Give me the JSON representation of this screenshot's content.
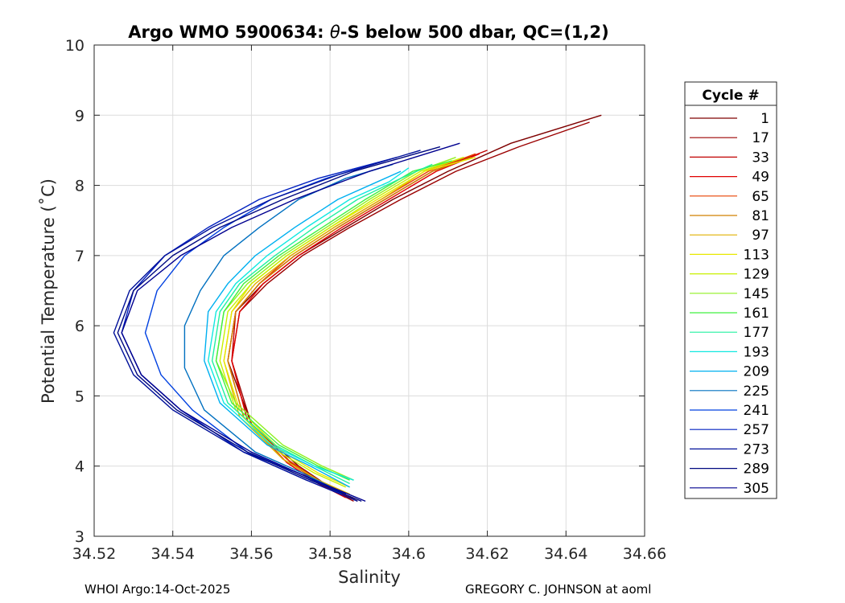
{
  "chart_data": {
    "type": "line",
    "title": "Argo WMO 5900634: θ-S below 500 dbar,  QC=(1,2)",
    "title_parts": {
      "prefix": "Argo WMO 5900634: ",
      "theta": "θ",
      "suffix": "-S below 500 dbar,  QC=(1,2)"
    },
    "xlabel": "Salinity",
    "ylabel": "Potential Temperature (˚C)",
    "xlim": [
      34.52,
      34.66
    ],
    "ylim": [
      3,
      10
    ],
    "x_ticks": [
      34.52,
      34.54,
      34.56,
      34.58,
      34.6,
      34.62,
      34.64,
      34.66
    ],
    "x_tick_labels": [
      "34.52",
      "34.54",
      "34.56",
      "34.58",
      "34.6",
      "34.62",
      "34.64",
      "34.66"
    ],
    "y_ticks": [
      3,
      4,
      5,
      6,
      7,
      8,
      9,
      10
    ],
    "y_tick_labels": [
      "3",
      "4",
      "5",
      "6",
      "7",
      "8",
      "9",
      "10"
    ],
    "grid": true,
    "legend_position": "outside-right",
    "legend_title": "Cycle #",
    "colormap": "jet",
    "legend": [
      {
        "label": "1",
        "color": "#7f0000"
      },
      {
        "label": "17",
        "color": "#9b0000"
      },
      {
        "label": "33",
        "color": "#c00000"
      },
      {
        "label": "49",
        "color": "#e00000"
      },
      {
        "label": "65",
        "color": "#e84000"
      },
      {
        "label": "81",
        "color": "#d08000"
      },
      {
        "label": "97",
        "color": "#e0b000"
      },
      {
        "label": "113",
        "color": "#e8e800"
      },
      {
        "label": "129",
        "color": "#c8f000"
      },
      {
        "label": "145",
        "color": "#90f020"
      },
      {
        "label": "161",
        "color": "#40f040"
      },
      {
        "label": "177",
        "color": "#20f0a0"
      },
      {
        "label": "193",
        "color": "#10e8e0"
      },
      {
        "label": "209",
        "color": "#00b0f0"
      },
      {
        "label": "225",
        "color": "#0070c0"
      },
      {
        "label": "241",
        "color": "#0040e0"
      },
      {
        "label": "257",
        "color": "#0020c0"
      },
      {
        "label": "273",
        "color": "#00109a"
      },
      {
        "label": "289",
        "color": "#000880"
      },
      {
        "label": "305",
        "color": "#00008f"
      }
    ],
    "series": [
      {
        "name": "1",
        "color": "#7f0000",
        "x": [
          34.587,
          34.58,
          34.572,
          34.56,
          34.554,
          34.556,
          34.563,
          34.572,
          34.584,
          34.596,
          34.61,
          34.626,
          34.649
        ],
        "y": [
          3.5,
          3.7,
          4.0,
          4.6,
          5.5,
          6.2,
          6.6,
          7.0,
          7.4,
          7.8,
          8.2,
          8.6,
          9.0
        ]
      },
      {
        "name": "17",
        "color": "#9b0000",
        "x": [
          34.586,
          34.579,
          34.571,
          34.56,
          34.555,
          34.557,
          34.564,
          34.573,
          34.585,
          34.598,
          34.612,
          34.628,
          34.646
        ],
        "y": [
          3.5,
          3.7,
          4.0,
          4.6,
          5.5,
          6.2,
          6.6,
          7.0,
          7.4,
          7.8,
          8.2,
          8.55,
          8.9
        ]
      },
      {
        "name": "33",
        "color": "#c00000",
        "x": [
          34.585,
          34.578,
          34.57,
          34.559,
          34.555,
          34.556,
          34.562,
          34.571,
          34.582,
          34.594,
          34.606,
          34.62
        ],
        "y": [
          3.55,
          3.75,
          4.05,
          4.65,
          5.5,
          6.2,
          6.6,
          7.0,
          7.4,
          7.8,
          8.2,
          8.5
        ]
      },
      {
        "name": "49",
        "color": "#e00000",
        "x": [
          34.584,
          34.577,
          34.569,
          34.559,
          34.555,
          34.557,
          34.563,
          34.572,
          34.583,
          34.595,
          34.607,
          34.618
        ],
        "y": [
          3.55,
          3.75,
          4.05,
          4.65,
          5.5,
          6.2,
          6.6,
          7.0,
          7.4,
          7.8,
          8.2,
          8.45
        ]
      },
      {
        "name": "65",
        "color": "#e84000",
        "x": [
          34.584,
          34.577,
          34.569,
          34.558,
          34.554,
          34.556,
          34.562,
          34.57,
          34.581,
          34.593,
          34.605,
          34.617
        ],
        "y": [
          3.6,
          3.8,
          4.1,
          4.7,
          5.5,
          6.2,
          6.6,
          7.0,
          7.4,
          7.8,
          8.2,
          8.45
        ]
      },
      {
        "name": "81",
        "color": "#d08000",
        "x": [
          34.584,
          34.577,
          34.568,
          34.558,
          34.554,
          34.556,
          34.562,
          34.571,
          34.582,
          34.594,
          34.606,
          34.616
        ],
        "y": [
          3.6,
          3.8,
          4.1,
          4.7,
          5.5,
          6.2,
          6.6,
          7.0,
          7.4,
          7.8,
          8.2,
          8.4
        ]
      },
      {
        "name": "97",
        "color": "#e0b000",
        "x": [
          34.585,
          34.577,
          34.568,
          34.557,
          34.553,
          34.555,
          34.561,
          34.57,
          34.581,
          34.593,
          34.604,
          34.614
        ],
        "y": [
          3.6,
          3.8,
          4.1,
          4.7,
          5.5,
          6.2,
          6.6,
          7.0,
          7.4,
          7.8,
          8.2,
          8.4
        ]
      },
      {
        "name": "113",
        "color": "#e8e800",
        "x": [
          34.585,
          34.577,
          34.568,
          34.557,
          34.553,
          34.555,
          34.56,
          34.569,
          34.58,
          34.592,
          34.604,
          34.617
        ],
        "y": [
          3.7,
          3.9,
          4.2,
          4.8,
          5.5,
          6.2,
          6.6,
          7.0,
          7.4,
          7.8,
          8.2,
          8.4
        ]
      },
      {
        "name": "129",
        "color": "#c8f000",
        "x": [
          34.584,
          34.576,
          34.567,
          34.556,
          34.552,
          34.554,
          34.56,
          34.569,
          34.58,
          34.591,
          34.603,
          34.614
        ],
        "y": [
          3.7,
          3.9,
          4.2,
          4.8,
          5.5,
          6.2,
          6.6,
          7.0,
          7.4,
          7.8,
          8.2,
          8.4
        ]
      },
      {
        "name": "145",
        "color": "#90f020",
        "x": [
          34.586,
          34.578,
          34.568,
          34.556,
          34.551,
          34.553,
          34.559,
          34.568,
          34.579,
          34.59,
          34.602,
          34.612
        ],
        "y": [
          3.8,
          4.0,
          4.3,
          4.9,
          5.5,
          6.2,
          6.6,
          7.0,
          7.4,
          7.8,
          8.2,
          8.4
        ]
      },
      {
        "name": "161",
        "color": "#40f040",
        "x": [
          34.585,
          34.577,
          34.567,
          34.555,
          34.551,
          34.553,
          34.558,
          34.567,
          34.578,
          34.589,
          34.601,
          34.611
        ],
        "y": [
          3.8,
          4.0,
          4.3,
          4.9,
          5.5,
          6.2,
          6.6,
          7.0,
          7.4,
          7.8,
          8.2,
          8.35
        ]
      },
      {
        "name": "177",
        "color": "#20f0a0",
        "x": [
          34.585,
          34.576,
          34.566,
          34.554,
          34.55,
          34.552,
          34.557,
          34.566,
          34.576,
          34.587,
          34.598,
          34.606
        ],
        "y": [
          3.75,
          4.0,
          4.3,
          4.9,
          5.5,
          6.2,
          6.6,
          7.0,
          7.4,
          7.8,
          8.1,
          8.3
        ]
      },
      {
        "name": "193",
        "color": "#10e8e0",
        "x": [
          34.586,
          34.576,
          34.565,
          34.553,
          34.549,
          34.551,
          34.556,
          34.564,
          34.574,
          34.585,
          34.595,
          34.6
        ],
        "y": [
          3.8,
          4.0,
          4.3,
          4.9,
          5.5,
          6.2,
          6.6,
          7.0,
          7.4,
          7.8,
          8.05,
          8.25
        ]
      },
      {
        "name": "209",
        "color": "#00b0f0",
        "x": [
          34.585,
          34.575,
          34.564,
          34.552,
          34.548,
          34.549,
          34.554,
          34.561,
          34.571,
          34.582,
          34.592,
          34.598
        ],
        "y": [
          3.7,
          4.0,
          4.3,
          4.9,
          5.5,
          6.2,
          6.6,
          7.0,
          7.4,
          7.8,
          8.05,
          8.2
        ]
      },
      {
        "name": "225",
        "color": "#0070c0",
        "x": [
          34.584,
          34.573,
          34.561,
          34.548,
          34.543,
          34.543,
          34.547,
          34.553,
          34.562,
          34.572,
          34.584,
          34.596
        ],
        "y": [
          3.6,
          3.9,
          4.2,
          4.8,
          5.4,
          6.0,
          6.5,
          7.0,
          7.4,
          7.8,
          8.1,
          8.3
        ]
      },
      {
        "name": "241",
        "color": "#0040e0",
        "x": [
          34.583,
          34.572,
          34.559,
          34.545,
          34.537,
          34.533,
          34.536,
          34.543,
          34.553,
          34.565,
          34.579,
          34.594
        ],
        "y": [
          3.6,
          3.9,
          4.2,
          4.8,
          5.3,
          5.9,
          6.5,
          7.0,
          7.4,
          7.8,
          8.1,
          8.35
        ]
      },
      {
        "name": "257",
        "color": "#0020c0",
        "x": [
          34.584,
          34.572,
          34.558,
          34.542,
          34.532,
          34.527,
          34.53,
          34.538,
          34.549,
          34.562,
          34.577,
          34.597
        ],
        "y": [
          3.6,
          3.9,
          4.2,
          4.8,
          5.3,
          5.9,
          6.5,
          7.0,
          7.4,
          7.8,
          8.1,
          8.4
        ]
      },
      {
        "name": "273",
        "color": "#00109a",
        "x": [
          34.587,
          34.574,
          34.558,
          34.54,
          34.53,
          34.525,
          34.529,
          34.538,
          34.55,
          34.565,
          34.582,
          34.603
        ],
        "y": [
          3.5,
          3.8,
          4.2,
          4.8,
          5.3,
          5.9,
          6.5,
          7.0,
          7.4,
          7.8,
          8.15,
          8.5
        ]
      },
      {
        "name": "289",
        "color": "#000880",
        "x": [
          34.588,
          34.575,
          34.559,
          34.541,
          34.531,
          34.526,
          34.53,
          34.54,
          34.552,
          34.568,
          34.586,
          34.608
        ],
        "y": [
          3.5,
          3.8,
          4.2,
          4.8,
          5.3,
          5.9,
          6.5,
          7.0,
          7.4,
          7.8,
          8.2,
          8.55
        ]
      },
      {
        "name": "305",
        "color": "#00008f",
        "x": [
          34.589,
          34.576,
          34.56,
          34.542,
          34.532,
          34.527,
          34.531,
          34.542,
          34.555,
          34.571,
          34.59,
          34.613
        ],
        "y": [
          3.5,
          3.8,
          4.2,
          4.8,
          5.3,
          5.9,
          6.5,
          7.0,
          7.4,
          7.8,
          8.2,
          8.6
        ]
      }
    ]
  },
  "footer": {
    "left": "WHOI Argo:14-Oct-2025",
    "right": "GREGORY C. JOHNSON at aoml"
  }
}
